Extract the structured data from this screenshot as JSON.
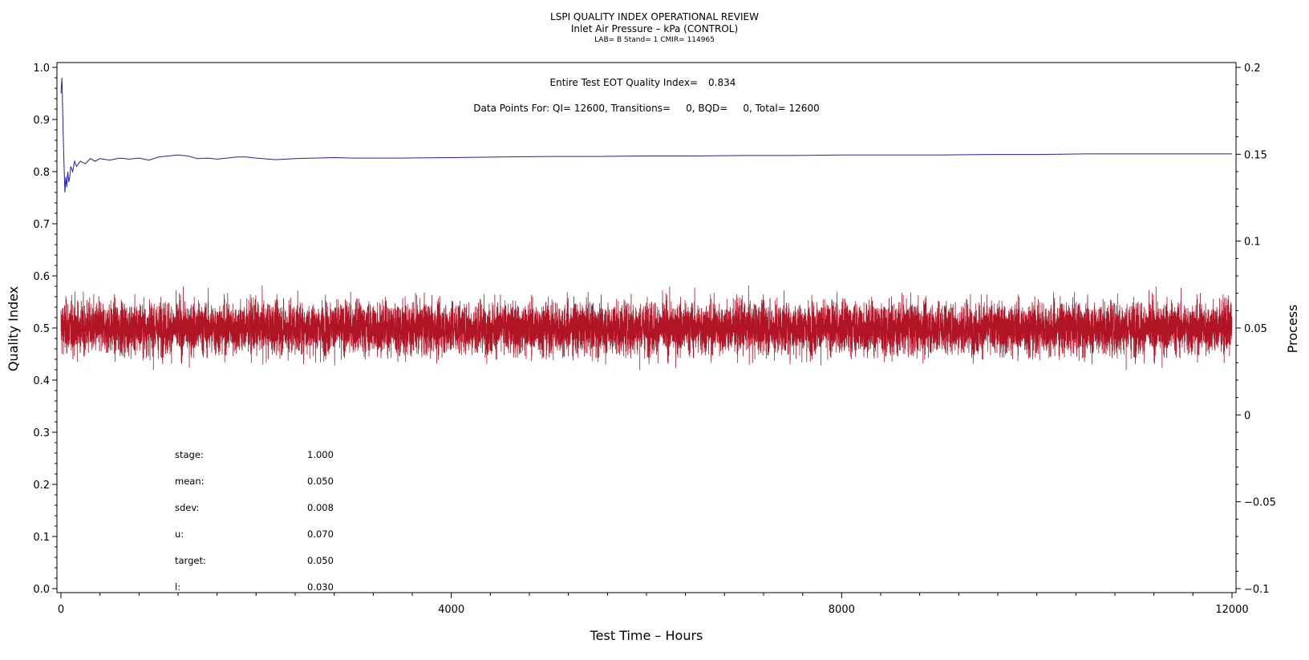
{
  "chart_data": {
    "type": "line",
    "title": "LSPI QUALITY INDEX OPERATIONAL REVIEW",
    "subtitle": "Inlet Air Pressure – kPa (CONTROL)",
    "subtitle2": "LAB= B Stand= 1 CMIR= 114965",
    "xlabel": "Test Time – Hours",
    "ylabel": "Quality Index",
    "y2label": "Process",
    "xlim": [
      0,
      12000
    ],
    "ylim": [
      0.0,
      1.0
    ],
    "y2lim": [
      -0.1,
      0.2
    ],
    "x_ticks": [
      "0",
      "4000",
      "8000",
      "12000"
    ],
    "x_tick_values": [
      0,
      4000,
      8000,
      12000
    ],
    "y_ticks": [
      "0.0",
      "0.1",
      "0.2",
      "0.3",
      "0.4",
      "0.5",
      "0.6",
      "0.7",
      "0.8",
      "0.9",
      "1.0"
    ],
    "y_tick_values": [
      0,
      0.1,
      0.2,
      0.3,
      0.4,
      0.5,
      0.6,
      0.7,
      0.8,
      0.9,
      1.0
    ],
    "y2_ticks": [
      "−0.1",
      "−0.05",
      "0",
      "0.05",
      "0.1",
      "0.15",
      "0.2"
    ],
    "y2_tick_values": [
      -0.1,
      -0.05,
      0,
      0.05,
      0.1,
      0.15,
      0.2
    ],
    "annotations": {
      "eot_label": "Entire Test EOT Quality Index=",
      "eot_value": "0.834",
      "points_line": "Data Points For: QI= 12600, Transitions=     0, BQD=     0, Total= 12600"
    },
    "stats": [
      {
        "label": "stage:",
        "value": "1.000"
      },
      {
        "label": "mean:",
        "value": "0.050"
      },
      {
        "label": "sdev:",
        "value": "0.008"
      },
      {
        "label": "u:",
        "value": "0.070"
      },
      {
        "label": "target:",
        "value": "0.050"
      },
      {
        "label": "l:",
        "value": "0.030"
      }
    ],
    "series": [
      {
        "axis": "left",
        "color": "#1f1fb4",
        "x": [
          0,
          10,
          20,
          30,
          40,
          50,
          60,
          70,
          80,
          90,
          100,
          120,
          140,
          160,
          180,
          200,
          250,
          300,
          350,
          400,
          500,
          600,
          700,
          800,
          900,
          1000,
          1100,
          1200,
          1300,
          1400,
          1500,
          1600,
          1700,
          1800,
          1900,
          2000,
          2200,
          2400,
          2600,
          2800,
          3000,
          3500,
          4000,
          4500,
          5000,
          5500,
          6000,
          6500,
          7000,
          7500,
          8000,
          8500,
          9000,
          9500,
          10000,
          10500,
          11000,
          11500,
          12000
        ],
        "values": [
          0.95,
          0.98,
          0.9,
          0.82,
          0.76,
          0.79,
          0.77,
          0.8,
          0.78,
          0.79,
          0.81,
          0.8,
          0.82,
          0.81,
          0.815,
          0.82,
          0.815,
          0.825,
          0.82,
          0.825,
          0.822,
          0.826,
          0.824,
          0.826,
          0.822,
          0.828,
          0.83,
          0.832,
          0.83,
          0.825,
          0.826,
          0.824,
          0.826,
          0.828,
          0.828,
          0.826,
          0.823,
          0.825,
          0.826,
          0.827,
          0.826,
          0.826,
          0.827,
          0.828,
          0.829,
          0.829,
          0.83,
          0.83,
          0.831,
          0.831,
          0.832,
          0.832,
          0.832,
          0.833,
          0.833,
          0.834,
          0.834,
          0.834,
          0.834
        ]
      },
      {
        "axis": "right",
        "color": "#b01425",
        "mean": 0.05,
        "sdev": 0.008,
        "n": 12600
      }
    ]
  }
}
